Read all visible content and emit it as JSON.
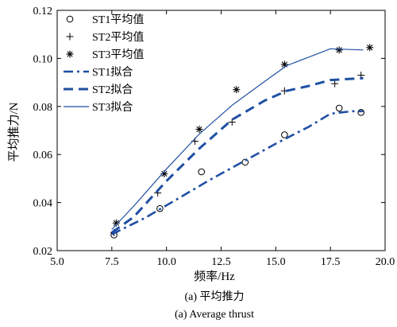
{
  "chart_data": {
    "type": "line",
    "xlabel": "频率/Hz",
    "ylabel": "平均推力/N",
    "xlim": [
      5.0,
      20.0
    ],
    "ylim": [
      0.02,
      0.12
    ],
    "xticks": [
      "5.0",
      "7.5",
      "10.0",
      "12.5",
      "15.0",
      "17.5",
      "20.0"
    ],
    "yticks": [
      "0.02",
      "0.04",
      "0.06",
      "0.08",
      "0.10",
      "0.12"
    ],
    "grid": false,
    "legend_position": "top-left",
    "captions": [
      "(a) 平均推力",
      "(a) Average thrust"
    ],
    "series": [
      {
        "name": "ST1平均值",
        "kind": "marker",
        "marker": "circle",
        "x": [
          7.6,
          9.7,
          11.6,
          13.6,
          15.4,
          17.9,
          18.9
        ],
        "y": [
          0.0265,
          0.0375,
          0.0528,
          0.0568,
          0.0682,
          0.0793,
          0.0775
        ]
      },
      {
        "name": "ST2平均值",
        "kind": "marker",
        "marker": "plus",
        "x": [
          7.6,
          9.6,
          11.3,
          13.0,
          15.4,
          17.7,
          18.9
        ],
        "y": [
          0.0275,
          0.044,
          0.0655,
          0.0735,
          0.0865,
          0.0895,
          0.093
        ]
      },
      {
        "name": "ST3平均值",
        "kind": "marker",
        "marker": "star",
        "x": [
          7.7,
          9.9,
          11.5,
          13.2,
          15.4,
          17.9,
          19.3
        ],
        "y": [
          0.0315,
          0.052,
          0.0705,
          0.087,
          0.0975,
          0.1035,
          0.1045
        ]
      },
      {
        "name": "ST1拟合",
        "kind": "line",
        "dash": "dashdot",
        "color": "#1f4fa3",
        "x": [
          7.5,
          9.0,
          10.5,
          12.0,
          13.5,
          15.0,
          16.5,
          17.5,
          18.5,
          19.0
        ],
        "y": [
          0.0268,
          0.0335,
          0.0415,
          0.0495,
          0.057,
          0.0645,
          0.0715,
          0.077,
          0.078,
          0.078
        ]
      },
      {
        "name": "ST2拟合",
        "kind": "line",
        "dash": "dashed",
        "color": "#1f4fa3",
        "x": [
          7.5,
          8.5,
          10.0,
          11.5,
          13.0,
          14.5,
          15.5,
          16.5,
          17.5,
          19.0
        ],
        "y": [
          0.0275,
          0.034,
          0.049,
          0.0625,
          0.0745,
          0.0825,
          0.0865,
          0.0885,
          0.091,
          0.0918
        ]
      },
      {
        "name": "ST3拟合",
        "kind": "line",
        "dash": "solid",
        "color": "#1f4fa3",
        "x": [
          7.5,
          8.5,
          10.0,
          11.5,
          13.0,
          14.5,
          15.5,
          16.5,
          17.5,
          19.0
        ],
        "y": [
          0.0288,
          0.0385,
          0.054,
          0.0685,
          0.0805,
          0.0905,
          0.097,
          0.1005,
          0.104,
          0.1035
        ]
      }
    ]
  }
}
